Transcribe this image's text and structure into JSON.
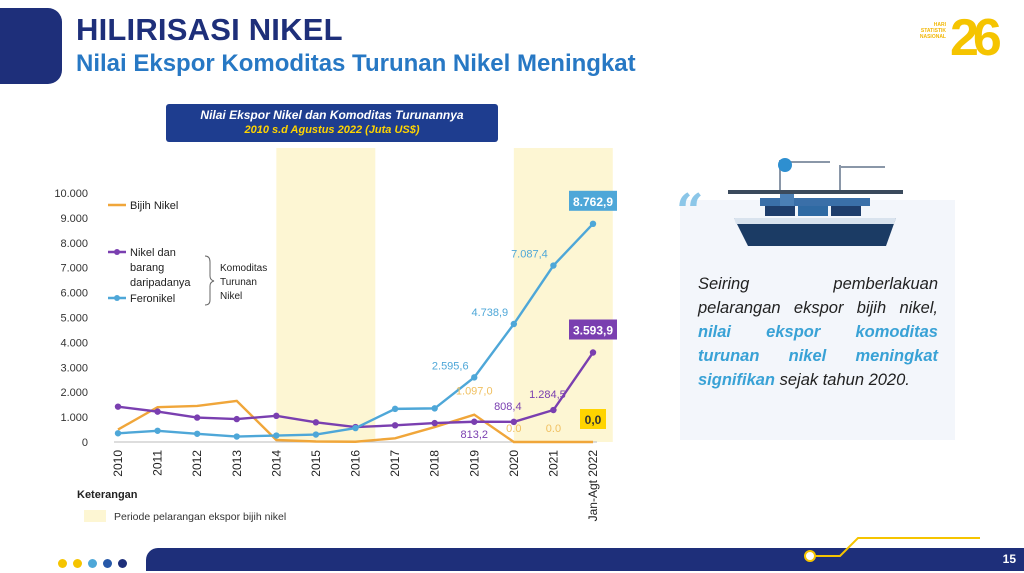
{
  "header": {
    "title": "HILIRISASI NIKEL",
    "subtitle": "Nilai Ekspor Komoditas Turunan Nikel Meningkat"
  },
  "logo": {
    "line1": "HARI",
    "line2": "STATISTIK",
    "line3": "NASIONAL",
    "number": "26"
  },
  "chart_box": {
    "title_line1": "Nilai Ekspor Nikel dan Komoditas Turunannya",
    "title_line2": "2010 s.d Agustus 2022 (Juta US$)"
  },
  "chart_data": {
    "type": "line",
    "title": "Nilai Ekspor Nikel dan Komoditas Turunannya 2010 s.d Agustus 2022 (Juta US$)",
    "categories": [
      "2010",
      "2011",
      "2012",
      "2013",
      "2014",
      "2015",
      "2016",
      "2017",
      "2018",
      "2019",
      "2020",
      "2021",
      "Jan-Agt 2022"
    ],
    "ylim": [
      0,
      10000
    ],
    "yticks": [
      "0",
      "1.000",
      "2.000",
      "3.000",
      "4.000",
      "5.000",
      "6.000",
      "7.000",
      "8.000",
      "9.000",
      "10.000"
    ],
    "series": [
      {
        "name": "Bijih Nikel",
        "color": "#f0a63a",
        "values": [
          500,
          1400,
          1450,
          1650,
          80,
          20,
          10,
          150,
          600,
          1097.0,
          0.0,
          0.0,
          0.0
        ]
      },
      {
        "name": "Nikel dan barang daripadanya",
        "color": "#7a3fb0",
        "values": [
          1420,
          1220,
          980,
          920,
          1050,
          790,
          600,
          670,
          760,
          813.2,
          808.4,
          1284.5,
          3593.9
        ]
      },
      {
        "name": "Feronikel",
        "color": "#4ea7d8",
        "values": [
          350,
          450,
          330,
          220,
          260,
          300,
          560,
          1330,
          1350,
          2595.6,
          4738.9,
          7087.4,
          8762.9
        ]
      }
    ],
    "data_labels": [
      {
        "series": 2,
        "index": 9,
        "text": "2.595,6"
      },
      {
        "series": 2,
        "index": 10,
        "text": "4.738,9"
      },
      {
        "series": 2,
        "index": 11,
        "text": "7.087,4"
      },
      {
        "series": 2,
        "index": 12,
        "text": "8.762,9"
      },
      {
        "series": 1,
        "index": 9,
        "text": "813,2"
      },
      {
        "series": 1,
        "index": 10,
        "text": "808,4"
      },
      {
        "series": 1,
        "index": 11,
        "text": "1.284,5"
      },
      {
        "series": 1,
        "index": 12,
        "text": "3.593,9"
      },
      {
        "series": 0,
        "index": 9,
        "text": "1.097,0"
      },
      {
        "series": 0,
        "index": 10,
        "text": "0.0"
      },
      {
        "series": 0,
        "index": 11,
        "text": "0.0"
      },
      {
        "series": 0,
        "index": 12,
        "text": "0,0"
      }
    ],
    "shaded_periods": [
      [
        2014,
        2016
      ],
      [
        2020,
        2022
      ]
    ],
    "legend": {
      "items": [
        "Bijih Nikel",
        "Nikel dan barang daripadanya",
        "Feronikel"
      ],
      "nikel_label_lines": [
        "Nikel dan",
        "barang",
        "daripadanya"
      ],
      "group_label_lines": [
        "Komoditas",
        "Turunan",
        "Nikel"
      ]
    }
  },
  "notes": {
    "heading": "Keterangan",
    "shading_label": "Periode pelarangan ekspor bijih nikel"
  },
  "quote": {
    "mark": "“",
    "text_before": "Seiring pemberlakuan pelarangan ekspor bijih nikel, ",
    "highlight": "nilai ekspor komoditas turunan nikel meningkat signifikan",
    "text_after": " sejak tahun 2020."
  },
  "footer": {
    "page_number": "15"
  },
  "colors": {
    "navy": "#1e2f7a",
    "blue": "#2778c4",
    "gold": "#f5c400",
    "shade": "#fdf6d3"
  }
}
